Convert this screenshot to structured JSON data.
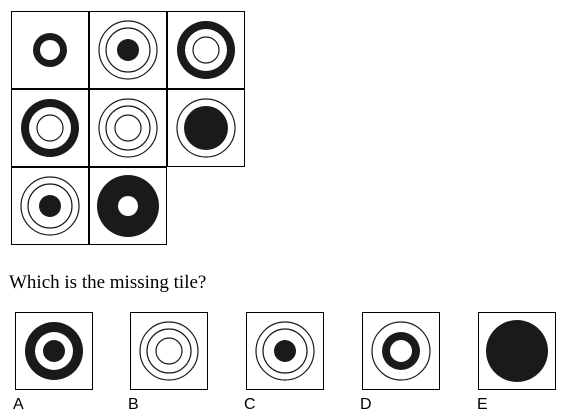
{
  "question": "Which is the missing tile?",
  "grid": [
    {
      "id": "r1c1",
      "icon": "thick-ring-small-icon",
      "rings": [
        {
          "r": 17,
          "fill": "#1a1a1a"
        },
        {
          "r": 10,
          "fill": "#ffffff"
        }
      ]
    },
    {
      "id": "r1c2",
      "icon": "concentric-rings-with-dot-icon",
      "rings": [
        {
          "r": 29,
          "fill": "#ffffff",
          "stroke": true
        },
        {
          "r": 22,
          "fill": "#ffffff",
          "stroke": true
        },
        {
          "r": 11,
          "fill": "#1a1a1a"
        }
      ]
    },
    {
      "id": "r1c3",
      "icon": "thick-ring-with-inner-ring-icon",
      "rings": [
        {
          "r": 29,
          "fill": "#1a1a1a"
        },
        {
          "r": 21,
          "fill": "#ffffff"
        },
        {
          "r": 13,
          "fill": "#ffffff",
          "stroke": true
        }
      ]
    },
    {
      "id": "r2c1",
      "icon": "thick-ring-with-inner-ring-icon",
      "rings": [
        {
          "r": 29,
          "fill": "#1a1a1a"
        },
        {
          "r": 21,
          "fill": "#ffffff"
        },
        {
          "r": 13,
          "fill": "#ffffff",
          "stroke": true
        }
      ]
    },
    {
      "id": "r2c2",
      "icon": "concentric-rings-icon",
      "rings": [
        {
          "r": 29,
          "fill": "#ffffff",
          "stroke": true
        },
        {
          "r": 22,
          "fill": "#ffffff",
          "stroke": true
        },
        {
          "r": 13,
          "fill": "#ffffff",
          "stroke": true
        }
      ]
    },
    {
      "id": "r2c3",
      "icon": "ring-with-filled-disc-icon",
      "rings": [
        {
          "r": 29,
          "fill": "#ffffff",
          "stroke": true
        },
        {
          "r": 22,
          "fill": "#1a1a1a"
        }
      ]
    },
    {
      "id": "r3c1",
      "icon": "concentric-rings-with-dot-icon",
      "rings": [
        {
          "r": 29,
          "fill": "#ffffff",
          "stroke": true
        },
        {
          "r": 22,
          "fill": "#ffffff",
          "stroke": true
        },
        {
          "r": 11,
          "fill": "#1a1a1a"
        }
      ]
    },
    {
      "id": "r3c2",
      "icon": "thick-ring-large-icon",
      "rings": [
        {
          "r": 31,
          "fill": "#1a1a1a"
        },
        {
          "r": 10,
          "fill": "#ffffff"
        }
      ]
    }
  ],
  "options": [
    {
      "letter": "A",
      "icon": "thick-ring-with-dot-icon",
      "rings": [
        {
          "r": 29,
          "fill": "#1a1a1a"
        },
        {
          "r": 19,
          "fill": "#ffffff"
        },
        {
          "r": 11,
          "fill": "#1a1a1a"
        }
      ]
    },
    {
      "letter": "B",
      "icon": "concentric-rings-icon",
      "rings": [
        {
          "r": 29,
          "fill": "#ffffff",
          "stroke": true
        },
        {
          "r": 22,
          "fill": "#ffffff",
          "stroke": true
        },
        {
          "r": 13,
          "fill": "#ffffff",
          "stroke": true
        }
      ]
    },
    {
      "letter": "C",
      "icon": "concentric-rings-with-dot-icon",
      "rings": [
        {
          "r": 29,
          "fill": "#ffffff",
          "stroke": true
        },
        {
          "r": 22,
          "fill": "#ffffff",
          "stroke": true
        },
        {
          "r": 11,
          "fill": "#1a1a1a"
        }
      ]
    },
    {
      "letter": "D",
      "icon": "ring-with-thick-inner-ring-icon",
      "rings": [
        {
          "r": 29,
          "fill": "#ffffff",
          "stroke": true
        },
        {
          "r": 19,
          "fill": "#1a1a1a"
        },
        {
          "r": 11,
          "fill": "#ffffff"
        }
      ]
    },
    {
      "letter": "E",
      "icon": "filled-disc-icon",
      "rings": [
        {
          "r": 31,
          "fill": "#1a1a1a"
        }
      ]
    }
  ]
}
